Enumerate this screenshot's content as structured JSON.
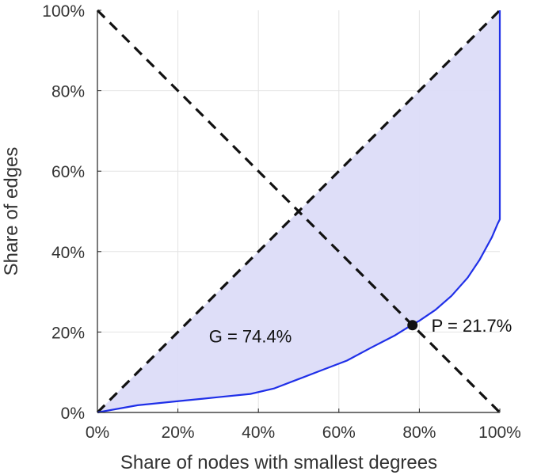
{
  "chart_data": {
    "type": "line",
    "xlabel": "Share of nodes with smallest degrees",
    "ylabel": "Share of edges",
    "xlim": [
      0,
      100
    ],
    "ylim": [
      0,
      100
    ],
    "x_ticks": [
      "0%",
      "20%",
      "40%",
      "60%",
      "80%",
      "100%"
    ],
    "y_ticks": [
      "0%",
      "20%",
      "40%",
      "60%",
      "80%",
      "100%"
    ],
    "grid": true,
    "series": [
      {
        "name": "",
        "color": "#1f2fe8",
        "fill": "#dcdcf8",
        "x": [
          0,
          10,
          20,
          30,
          38,
          44,
          50,
          56,
          62,
          68,
          74,
          78,
          80,
          84,
          88,
          92,
          95,
          98,
          99.5,
          100,
          100
        ],
        "y": [
          0,
          1.8,
          2.8,
          3.8,
          4.6,
          6.0,
          8.3,
          10.6,
          12.9,
          16.1,
          19.2,
          21.7,
          22.8,
          25.5,
          29.0,
          33.5,
          38.0,
          43.5,
          47.0,
          48.0,
          100
        ]
      }
    ],
    "reference_lines": [
      {
        "from": [
          0,
          0
        ],
        "to": [
          100,
          100
        ],
        "style": "dashed",
        "color": "#111111"
      },
      {
        "from": [
          0,
          100
        ],
        "to": [
          100,
          0
        ],
        "style": "dashed",
        "color": "#111111"
      }
    ],
    "marker": {
      "x": 78.3,
      "y": 21.7,
      "color": "#111111"
    },
    "annotations": [
      {
        "text": "G = 74.4%",
        "x": 38,
        "y": 19
      },
      {
        "text": "P = 21.7%",
        "x": 83,
        "y": 21.7
      }
    ]
  }
}
